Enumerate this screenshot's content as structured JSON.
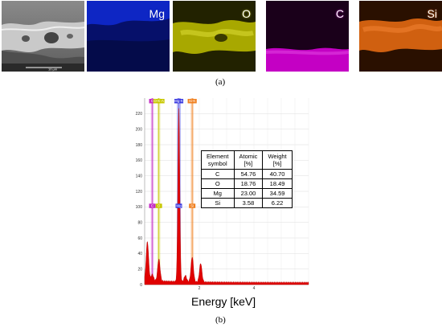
{
  "figure": {
    "panel_a_label": "(a)",
    "panel_b_label": "(b)",
    "maps": [
      {
        "label": "Mg",
        "color": "#0a1fb0"
      },
      {
        "label": "O",
        "color": "#b8b800"
      },
      {
        "label": "C",
        "color": "#c400c4"
      },
      {
        "label": "Si",
        "color": "#e06000"
      }
    ],
    "sem_scale_text": "10 µm"
  },
  "chart_data": {
    "type": "line",
    "xlabel": "Energy [keV]",
    "ylabel": "",
    "x_ticks": [
      2,
      4
    ],
    "y_ticks": [
      0,
      20,
      40,
      60,
      80,
      100,
      120,
      140,
      160,
      180,
      200,
      220
    ],
    "xlim": [
      0,
      6
    ],
    "ylim": [
      0,
      240
    ],
    "grid": true,
    "peaks": [
      {
        "x": 0.1,
        "y": 50
      },
      {
        "x": 0.28,
        "y": 8
      },
      {
        "x": 0.52,
        "y": 28
      },
      {
        "x": 1.25,
        "y": 222
      },
      {
        "x": 1.49,
        "y": 8
      },
      {
        "x": 1.74,
        "y": 32
      },
      {
        "x": 2.05,
        "y": 24
      }
    ],
    "peak_markers": [
      {
        "label": "C",
        "x": 0.28,
        "color": "#c42cc4"
      },
      {
        "label": "O",
        "x": 0.52,
        "color": "#c8c800"
      },
      {
        "label": "Mg",
        "x": 1.25,
        "color": "#3a3ae0"
      },
      {
        "label": "Si",
        "x": 1.74,
        "color": "#f08020"
      }
    ],
    "top_marker_labels": [
      "C",
      "O-K-A",
      "Mg-K",
      "Si-K"
    ],
    "table": {
      "headers": [
        [
          "Element",
          "symbol"
        ],
        [
          "Atomic",
          "[%]"
        ],
        [
          "Weight",
          "[%]"
        ]
      ],
      "rows": [
        [
          "C",
          "54.76",
          "40.70"
        ],
        [
          "O",
          "18.76",
          "18.49"
        ],
        [
          "Mg",
          "23.00",
          "34.59"
        ],
        [
          "Si",
          "3.58",
          "6.22"
        ]
      ]
    }
  }
}
